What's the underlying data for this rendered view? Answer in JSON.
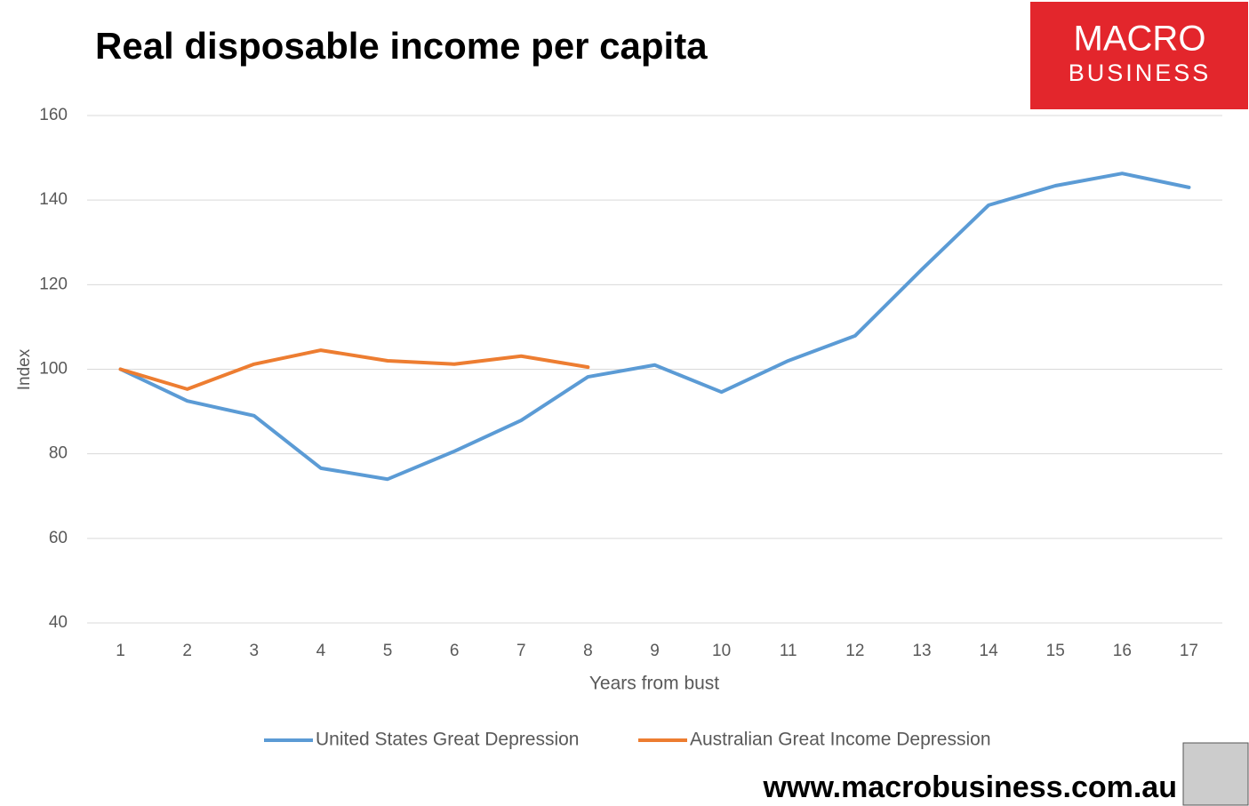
{
  "chart_data": {
    "type": "line",
    "title": "Real disposable income per capita",
    "y_label": "Index",
    "x_label": "Years from bust",
    "categories": [
      "1",
      "2",
      "3",
      "4",
      "5",
      "6",
      "7",
      "8",
      "9",
      "10",
      "11",
      "12",
      "13",
      "14",
      "15",
      "16",
      "17"
    ],
    "series": [
      {
        "name": "United States Great Depression",
        "color": "#5b9bd5",
        "values": [
          100,
          92.5,
          89.0,
          76.6,
          74.0,
          80.6,
          87.9,
          98.2,
          101,
          94.6,
          102,
          107.9,
          123.6,
          138.8,
          143.4,
          146.3,
          143
        ]
      },
      {
        "name": "Australian Great Income Depression",
        "color": "#ed7d31",
        "values": [
          100,
          95.3,
          101.2,
          104.5,
          102,
          101.2,
          103.1,
          100.5,
          null,
          null,
          null,
          null,
          null,
          null,
          null,
          null,
          null
        ]
      }
    ],
    "ylim": [
      40,
      160
    ],
    "yticks": [
      40,
      60,
      80,
      100,
      120,
      140,
      160
    ],
    "grid": true,
    "legend": "bottom"
  },
  "branding": {
    "logo_top": "MACRO",
    "logo_bottom": "BUSINESS",
    "url": "www.macrobusiness.com.au"
  }
}
